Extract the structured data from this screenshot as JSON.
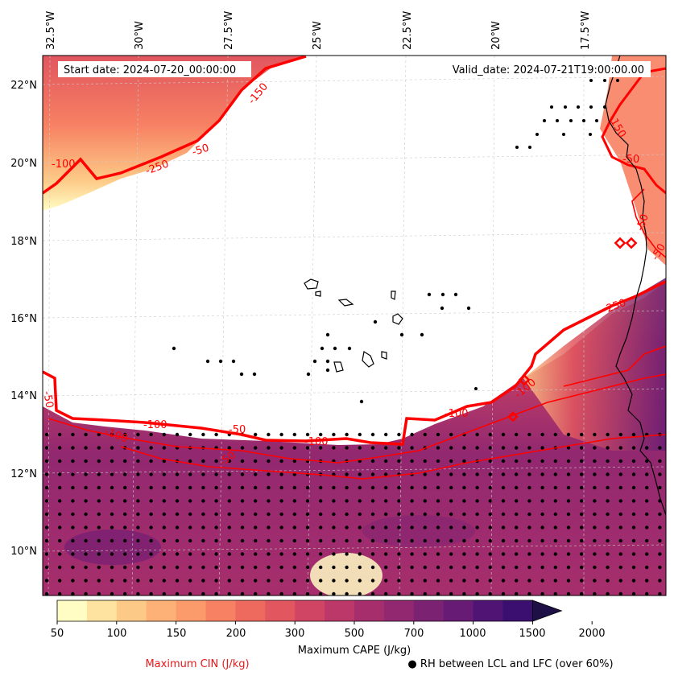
{
  "header": {
    "start_date": "Start date: 2024-07-20_00:00:00",
    "valid_date": "Valid_date: 2024-07-21T19:00:00.00"
  },
  "axes": {
    "lon_labels": [
      "32.5°W",
      "30°W",
      "27.5°W",
      "25°W",
      "22.5°W",
      "20°W",
      "17.5°W"
    ],
    "lat_labels": [
      "22°N",
      "20°N",
      "18°N",
      "16°N",
      "14°N",
      "12°N",
      "10°N"
    ]
  },
  "contours": {
    "cin_labels": [
      "-100",
      "-250",
      "-50",
      "-150",
      "-50",
      "-100",
      "-100",
      "-50",
      "-50",
      "-100",
      "-100",
      "-250",
      "-50",
      "-50",
      "-150",
      "-50",
      "-100"
    ]
  },
  "colorbar": {
    "ticks": [
      "50",
      "100",
      "150",
      "200",
      "300",
      "500",
      "700",
      "1000",
      "1500",
      "2000"
    ],
    "label": "Maximum CAPE (J/kg)",
    "colors": [
      "#fffdc4",
      "#fee3a0",
      "#fdc986",
      "#fdb177",
      "#fb9a6b",
      "#f78163",
      "#ee6a5f",
      "#e1565f",
      "#d04563",
      "#bc3868",
      "#a72e6c",
      "#922870",
      "#7c2273",
      "#671b75",
      "#501574",
      "#3b0f6f",
      "#1e0f46"
    ]
  },
  "legend": {
    "cin_label": "Maximum CIN (J/kg)",
    "rh_label": "RH between LCL and LFC (over 60%)",
    "rh_marker": "●"
  },
  "colors": {
    "cin_contour": "#ff0000",
    "coastline": "#000000",
    "grid": "#cccccc"
  }
}
